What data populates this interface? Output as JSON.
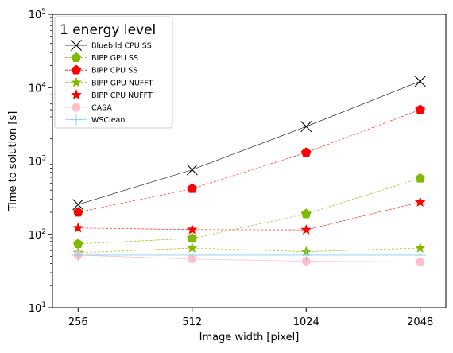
{
  "chart_data": {
    "type": "line",
    "title": "",
    "xlabel": "Image width [pixel]",
    "ylabel": "Time to solution [s]",
    "x_scale": "log2",
    "y_scale": "log10",
    "categories": [
      "256",
      "512",
      "1024",
      "2048"
    ],
    "x": [
      256,
      512,
      1024,
      2048
    ],
    "ylim": [
      10,
      100000
    ],
    "yticks": [
      10,
      100,
      1000,
      10000,
      100000
    ],
    "ytick_labels": [
      {
        "base": "10",
        "exp": "1"
      },
      {
        "base": "10",
        "exp": "2"
      },
      {
        "base": "10",
        "exp": "3"
      },
      {
        "base": "10",
        "exp": "4"
      },
      {
        "base": "10",
        "exp": "5"
      }
    ],
    "grid": false,
    "legend": {
      "title": "1 energy level",
      "placement": "top-left"
    },
    "series": [
      {
        "name": "Bluebild CPU SS",
        "values": [
          255,
          760,
          2950,
          12200
        ],
        "color": "#000000",
        "marker": "x",
        "linestyle": "solid"
      },
      {
        "name": "BIPP GPU SS",
        "values": [
          74,
          88,
          190,
          580
        ],
        "color": "#7fba00",
        "marker": "pentagon",
        "linestyle": "dashed"
      },
      {
        "name": "BIPP CPU SS",
        "values": [
          200,
          420,
          1300,
          5000
        ],
        "color": "#ff0000",
        "marker": "pentagon",
        "linestyle": "dashed"
      },
      {
        "name": "BIPP GPU NUFFT",
        "values": [
          56,
          65,
          58,
          65
        ],
        "color": "#7fba00",
        "marker": "star",
        "linestyle": "dashed"
      },
      {
        "name": "BIPP CPU NUFFT",
        "values": [
          122,
          116,
          115,
          275
        ],
        "color": "#ff0000",
        "marker": "star",
        "linestyle": "dashed"
      },
      {
        "name": "CASA",
        "values": [
          52,
          46,
          43,
          42
        ],
        "color": "#ffc0cb",
        "marker": "circle",
        "linestyle": "solid"
      },
      {
        "name": "WSClean",
        "values": [
          52,
          52,
          52,
          52
        ],
        "color": "#87ceeb",
        "marker": "plus",
        "linestyle": "solid"
      }
    ]
  }
}
